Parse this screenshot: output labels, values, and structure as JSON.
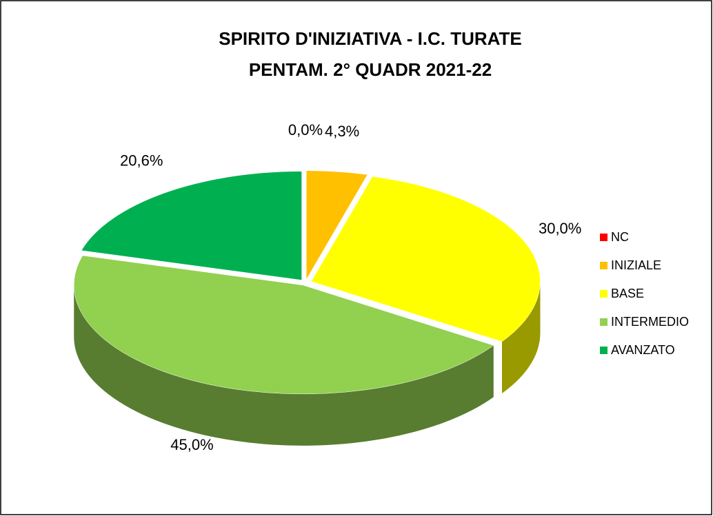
{
  "chart_data": {
    "type": "pie",
    "title": "SPIRITO D'INIZIATIVA  - I.C. TURATE",
    "subtitle": "PENTAM. 2° QUADR 2021-22",
    "categories": [
      "NC",
      "INIZIALE",
      "BASE",
      "INTERMEDIO",
      "AVANZATO"
    ],
    "values": [
      0,
      4.3,
      30,
      45,
      20.6
    ],
    "value_labels": [
      "0,0%",
      "4,3%",
      "30,0%",
      "45,0%",
      "20,6%"
    ],
    "colors": [
      "#ff0000",
      "#ffc000",
      "#ffff00",
      "#92d050",
      "#00b050"
    ],
    "legend": "right"
  }
}
